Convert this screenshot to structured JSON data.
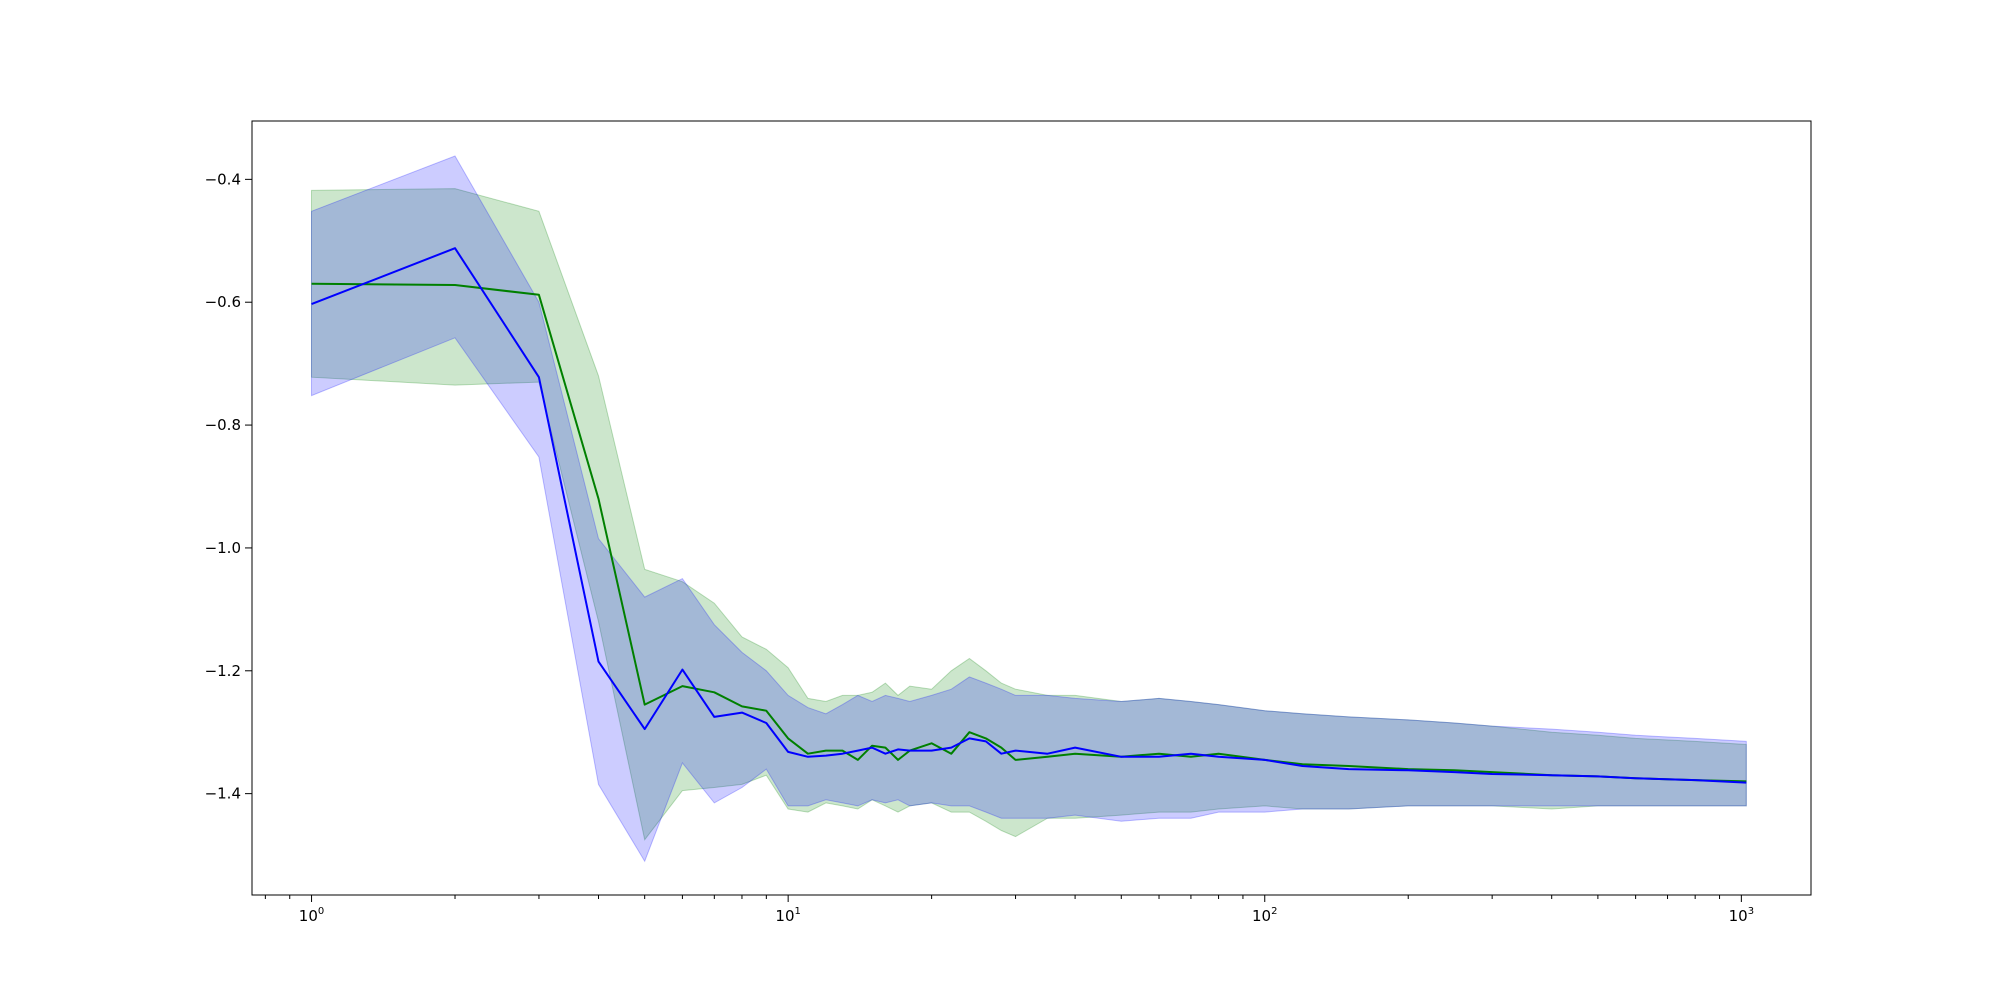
{
  "chart_data": {
    "type": "line",
    "title": "",
    "xlabel": "",
    "ylabel": "",
    "xscale": "log",
    "xlim": [
      0.75,
      1400
    ],
    "ylim": [
      -1.565,
      -0.305
    ],
    "x_ticks": [
      {
        "value": 1,
        "base": "10",
        "exp": "0"
      },
      {
        "value": 10,
        "base": "10",
        "exp": "1"
      },
      {
        "value": 100,
        "base": "10",
        "exp": "2"
      },
      {
        "value": 1000,
        "base": "10",
        "exp": "3"
      }
    ],
    "y_ticks": [
      {
        "value": -0.4,
        "label": "−0.4"
      },
      {
        "value": -0.6,
        "label": "−0.6"
      },
      {
        "value": -0.8,
        "label": "−0.8"
      },
      {
        "value": -1.0,
        "label": "−1.0"
      },
      {
        "value": -1.2,
        "label": "−1.2"
      },
      {
        "value": -1.4,
        "label": "−1.4"
      }
    ],
    "grid": false,
    "legend": "none",
    "series": [
      {
        "color": "#008000",
        "band_color": "#008000",
        "band_opacity": 0.2,
        "x": [
          1,
          2,
          3,
          4,
          5,
          6,
          7,
          8,
          9,
          10,
          11,
          12,
          13,
          14,
          15,
          16,
          17,
          18,
          20,
          22,
          24,
          26,
          28,
          30,
          35,
          40,
          50,
          60,
          70,
          80,
          100,
          120,
          150,
          200,
          250,
          300,
          400,
          500,
          600,
          800,
          1024
        ],
        "y": [
          -0.57,
          -0.572,
          -0.588,
          -0.92,
          -1.255,
          -1.225,
          -1.235,
          -1.258,
          -1.265,
          -1.31,
          -1.335,
          -1.33,
          -1.33,
          -1.345,
          -1.322,
          -1.325,
          -1.345,
          -1.33,
          -1.318,
          -1.335,
          -1.3,
          -1.31,
          -1.325,
          -1.345,
          -1.34,
          -1.335,
          -1.34,
          -1.335,
          -1.34,
          -1.335,
          -1.345,
          -1.352,
          -1.355,
          -1.36,
          -1.362,
          -1.365,
          -1.37,
          -1.372,
          -1.375,
          -1.378,
          -1.38
        ],
        "upper": [
          -0.418,
          -0.415,
          -0.452,
          -0.72,
          -1.035,
          -1.055,
          -1.09,
          -1.145,
          -1.165,
          -1.195,
          -1.245,
          -1.25,
          -1.24,
          -1.24,
          -1.235,
          -1.22,
          -1.24,
          -1.225,
          -1.23,
          -1.2,
          -1.18,
          -1.2,
          -1.22,
          -1.23,
          -1.24,
          -1.24,
          -1.25,
          -1.245,
          -1.25,
          -1.255,
          -1.265,
          -1.27,
          -1.275,
          -1.28,
          -1.285,
          -1.29,
          -1.3,
          -1.305,
          -1.31,
          -1.315,
          -1.32
        ],
        "lower": [
          -0.722,
          -0.735,
          -0.73,
          -1.12,
          -1.475,
          -1.395,
          -1.39,
          -1.385,
          -1.37,
          -1.425,
          -1.43,
          -1.415,
          -1.42,
          -1.425,
          -1.41,
          -1.42,
          -1.43,
          -1.42,
          -1.415,
          -1.43,
          -1.43,
          -1.445,
          -1.46,
          -1.47,
          -1.44,
          -1.44,
          -1.435,
          -1.43,
          -1.43,
          -1.425,
          -1.42,
          -1.425,
          -1.425,
          -1.42,
          -1.42,
          -1.42,
          -1.425,
          -1.42,
          -1.42,
          -1.42,
          -1.42
        ]
      },
      {
        "color": "#0000ff",
        "band_color": "#0000ff",
        "band_opacity": 0.2,
        "x": [
          1,
          2,
          3,
          4,
          5,
          6,
          7,
          8,
          9,
          10,
          11,
          12,
          13,
          14,
          15,
          16,
          17,
          18,
          20,
          22,
          24,
          26,
          28,
          30,
          35,
          40,
          50,
          60,
          70,
          80,
          100,
          120,
          150,
          200,
          250,
          300,
          400,
          500,
          600,
          800,
          1024
        ],
        "y": [
          -0.603,
          -0.512,
          -0.722,
          -1.185,
          -1.295,
          -1.198,
          -1.275,
          -1.268,
          -1.285,
          -1.332,
          -1.34,
          -1.338,
          -1.335,
          -1.33,
          -1.325,
          -1.335,
          -1.328,
          -1.33,
          -1.33,
          -1.325,
          -1.31,
          -1.315,
          -1.335,
          -1.33,
          -1.335,
          -1.325,
          -1.34,
          -1.34,
          -1.335,
          -1.34,
          -1.345,
          -1.355,
          -1.36,
          -1.362,
          -1.365,
          -1.368,
          -1.37,
          -1.372,
          -1.375,
          -1.378,
          -1.382
        ],
        "upper": [
          -0.452,
          -0.362,
          -0.6,
          -0.985,
          -1.08,
          -1.05,
          -1.125,
          -1.17,
          -1.2,
          -1.24,
          -1.26,
          -1.27,
          -1.255,
          -1.24,
          -1.25,
          -1.24,
          -1.245,
          -1.25,
          -1.24,
          -1.23,
          -1.21,
          -1.22,
          -1.23,
          -1.24,
          -1.24,
          -1.245,
          -1.25,
          -1.245,
          -1.25,
          -1.255,
          -1.265,
          -1.27,
          -1.275,
          -1.28,
          -1.285,
          -1.29,
          -1.295,
          -1.3,
          -1.305,
          -1.31,
          -1.315
        ],
        "lower": [
          -0.752,
          -0.658,
          -0.852,
          -1.385,
          -1.51,
          -1.35,
          -1.415,
          -1.39,
          -1.36,
          -1.42,
          -1.42,
          -1.41,
          -1.415,
          -1.42,
          -1.41,
          -1.415,
          -1.41,
          -1.42,
          -1.415,
          -1.42,
          -1.42,
          -1.43,
          -1.44,
          -1.44,
          -1.44,
          -1.435,
          -1.445,
          -1.44,
          -1.44,
          -1.43,
          -1.43,
          -1.425,
          -1.425,
          -1.42,
          -1.42,
          -1.42,
          -1.42,
          -1.42,
          -1.42,
          -1.42,
          -1.42
        ]
      }
    ]
  }
}
